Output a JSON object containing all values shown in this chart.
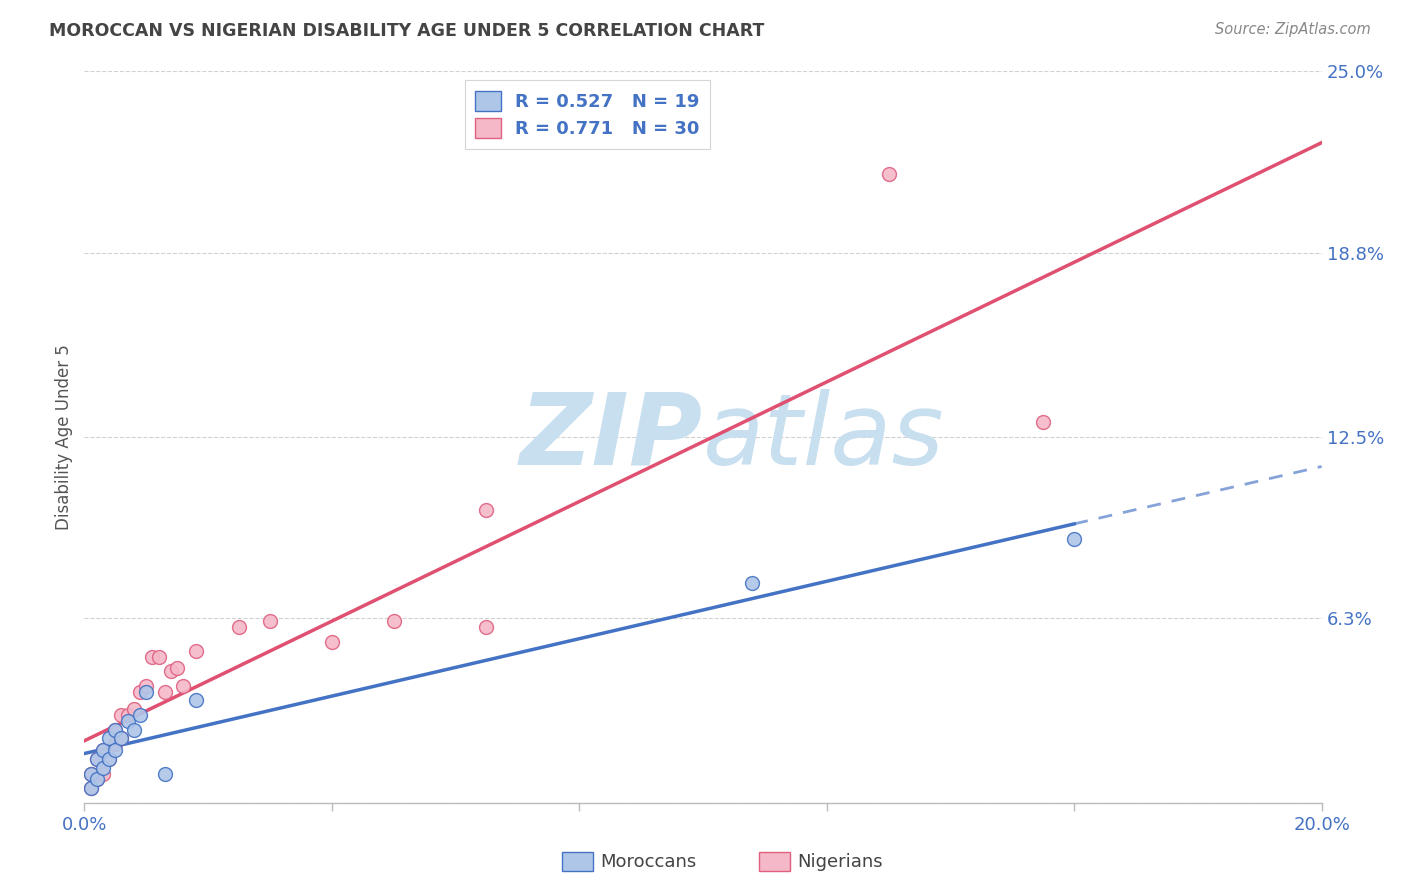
{
  "title": "MOROCCAN VS NIGERIAN DISABILITY AGE UNDER 5 CORRELATION CHART",
  "source": "Source: ZipAtlas.com",
  "ylabel": "Disability Age Under 5",
  "xlim": [
    0.0,
    0.2
  ],
  "ylim": [
    0.0,
    0.25
  ],
  "yticks": [
    0.0,
    0.063,
    0.125,
    0.188,
    0.25
  ],
  "ytick_labels": [
    "",
    "6.3%",
    "12.5%",
    "18.8%",
    "25.0%"
  ],
  "xticks": [
    0.0,
    0.04,
    0.08,
    0.12,
    0.16,
    0.2
  ],
  "xtick_labels": [
    "0.0%",
    "",
    "",
    "",
    "",
    "20.0%"
  ],
  "moroccan_x": [
    0.001,
    0.001,
    0.002,
    0.002,
    0.003,
    0.003,
    0.004,
    0.004,
    0.005,
    0.005,
    0.006,
    0.007,
    0.008,
    0.009,
    0.01,
    0.013,
    0.018,
    0.108,
    0.16
  ],
  "moroccan_y": [
    0.005,
    0.01,
    0.008,
    0.015,
    0.012,
    0.018,
    0.015,
    0.022,
    0.018,
    0.025,
    0.022,
    0.028,
    0.025,
    0.03,
    0.038,
    0.01,
    0.035,
    0.075,
    0.09
  ],
  "nigerian_x": [
    0.001,
    0.001,
    0.002,
    0.002,
    0.003,
    0.003,
    0.004,
    0.005,
    0.005,
    0.006,
    0.006,
    0.007,
    0.008,
    0.009,
    0.01,
    0.011,
    0.012,
    0.013,
    0.014,
    0.015,
    0.016,
    0.018,
    0.025,
    0.03,
    0.04,
    0.05,
    0.065,
    0.065,
    0.13,
    0.155
  ],
  "nigerian_y": [
    0.005,
    0.01,
    0.008,
    0.015,
    0.01,
    0.018,
    0.015,
    0.02,
    0.025,
    0.022,
    0.03,
    0.03,
    0.032,
    0.038,
    0.04,
    0.05,
    0.05,
    0.038,
    0.045,
    0.046,
    0.04,
    0.052,
    0.06,
    0.062,
    0.055,
    0.062,
    0.1,
    0.06,
    0.215,
    0.13
  ],
  "moroccan_color": "#aec6e8",
  "moroccan_edge_color": "#4472c4",
  "nigerian_color": "#f4b8c8",
  "nigerian_edge_color": "#e06080",
  "moroccan_line_color": "#4472c4",
  "nigerian_line_color": "#e05070",
  "moroccan_R": 0.527,
  "moroccan_N": 19,
  "nigerian_R": 0.771,
  "nigerian_N": 30,
  "legend_text_color": "#4472c4",
  "background_color": "#ffffff",
  "grid_color": "#cccccc",
  "watermark_zip_color": "#c8dff0",
  "watermark_atlas_color": "#c8dff0",
  "marker_size": 100
}
